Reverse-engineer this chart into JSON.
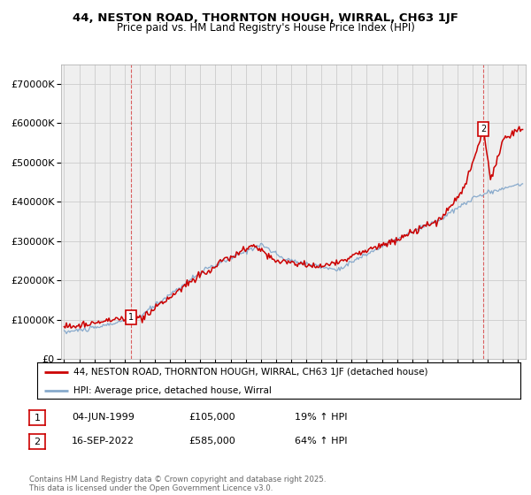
{
  "title": "44, NESTON ROAD, THORNTON HOUGH, WIRRAL, CH63 1JF",
  "subtitle": "Price paid vs. HM Land Registry's House Price Index (HPI)",
  "background_color": "#ffffff",
  "grid_color": "#cccccc",
  "plot_bg_color": "#efefef",
  "red_line_color": "#cc0000",
  "blue_line_color": "#88aacc",
  "vline_color": "#cc0000",
  "sale1_x": 1999.43,
  "sale1_y": 105000,
  "sale1_label": "1",
  "sale2_x": 2022.71,
  "sale2_y": 585000,
  "sale2_label": "2",
  "legend_entries": [
    "44, NESTON ROAD, THORNTON HOUGH, WIRRAL, CH63 1JF (detached house)",
    "HPI: Average price, detached house, Wirral"
  ],
  "table_rows": [
    [
      "1",
      "04-JUN-1999",
      "£105,000",
      "19% ↑ HPI"
    ],
    [
      "2",
      "16-SEP-2022",
      "£585,000",
      "64% ↑ HPI"
    ]
  ],
  "footer": "Contains HM Land Registry data © Crown copyright and database right 2025.\nThis data is licensed under the Open Government Licence v3.0.",
  "ylim": [
    0,
    750000
  ],
  "yticks": [
    0,
    100000,
    200000,
    300000,
    400000,
    500000,
    600000,
    700000
  ],
  "xmin": 1994.8,
  "xmax": 2025.5
}
